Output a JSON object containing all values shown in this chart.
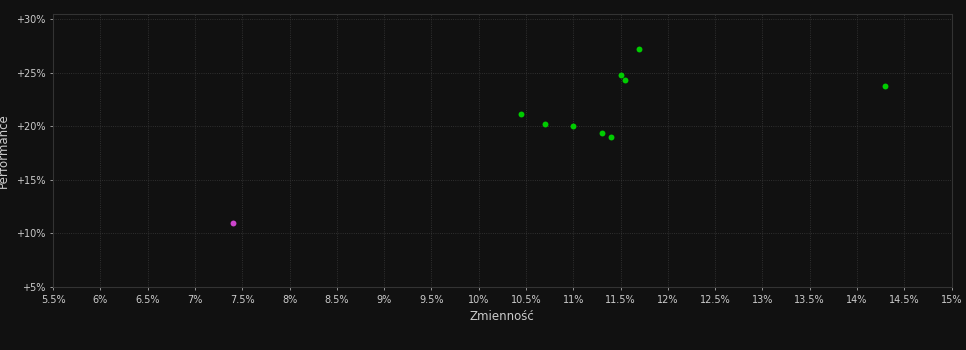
{
  "background_color": "#111111",
  "plot_bg_color": "#111111",
  "grid_color": "#3a3a3a",
  "text_color": "#cccccc",
  "xlabel": "Zmienność",
  "ylabel": "Performance",
  "xlim": [
    0.055,
    0.15
  ],
  "ylim": [
    0.05,
    0.305
  ],
  "xticks": [
    0.055,
    0.06,
    0.065,
    0.07,
    0.075,
    0.08,
    0.085,
    0.09,
    0.095,
    0.1,
    0.105,
    0.11,
    0.115,
    0.12,
    0.125,
    0.13,
    0.135,
    0.14,
    0.145,
    0.15
  ],
  "xtick_labels": [
    "5.5%",
    "6%",
    "6.5%",
    "7%",
    "7.5%",
    "8%",
    "8.5%",
    "9%",
    "9.5%",
    "10%",
    "10.5%",
    "11%",
    "11.5%",
    "12%",
    "12.5%",
    "13%",
    "13.5%",
    "14%",
    "14.5%",
    "15%"
  ],
  "yticks": [
    0.05,
    0.1,
    0.15,
    0.2,
    0.25,
    0.3
  ],
  "ytick_labels": [
    "+5%",
    "+10%",
    "+15%",
    "+20%",
    "+25%",
    "+30%"
  ],
  "green_points": [
    [
      0.1045,
      0.212
    ],
    [
      0.107,
      0.202
    ],
    [
      0.11,
      0.2
    ],
    [
      0.113,
      0.194
    ],
    [
      0.114,
      0.19
    ],
    [
      0.115,
      0.248
    ],
    [
      0.1155,
      0.243
    ],
    [
      0.117,
      0.272
    ],
    [
      0.143,
      0.238
    ]
  ],
  "magenta_points": [
    [
      0.074,
      0.11
    ]
  ],
  "point_size": 18
}
